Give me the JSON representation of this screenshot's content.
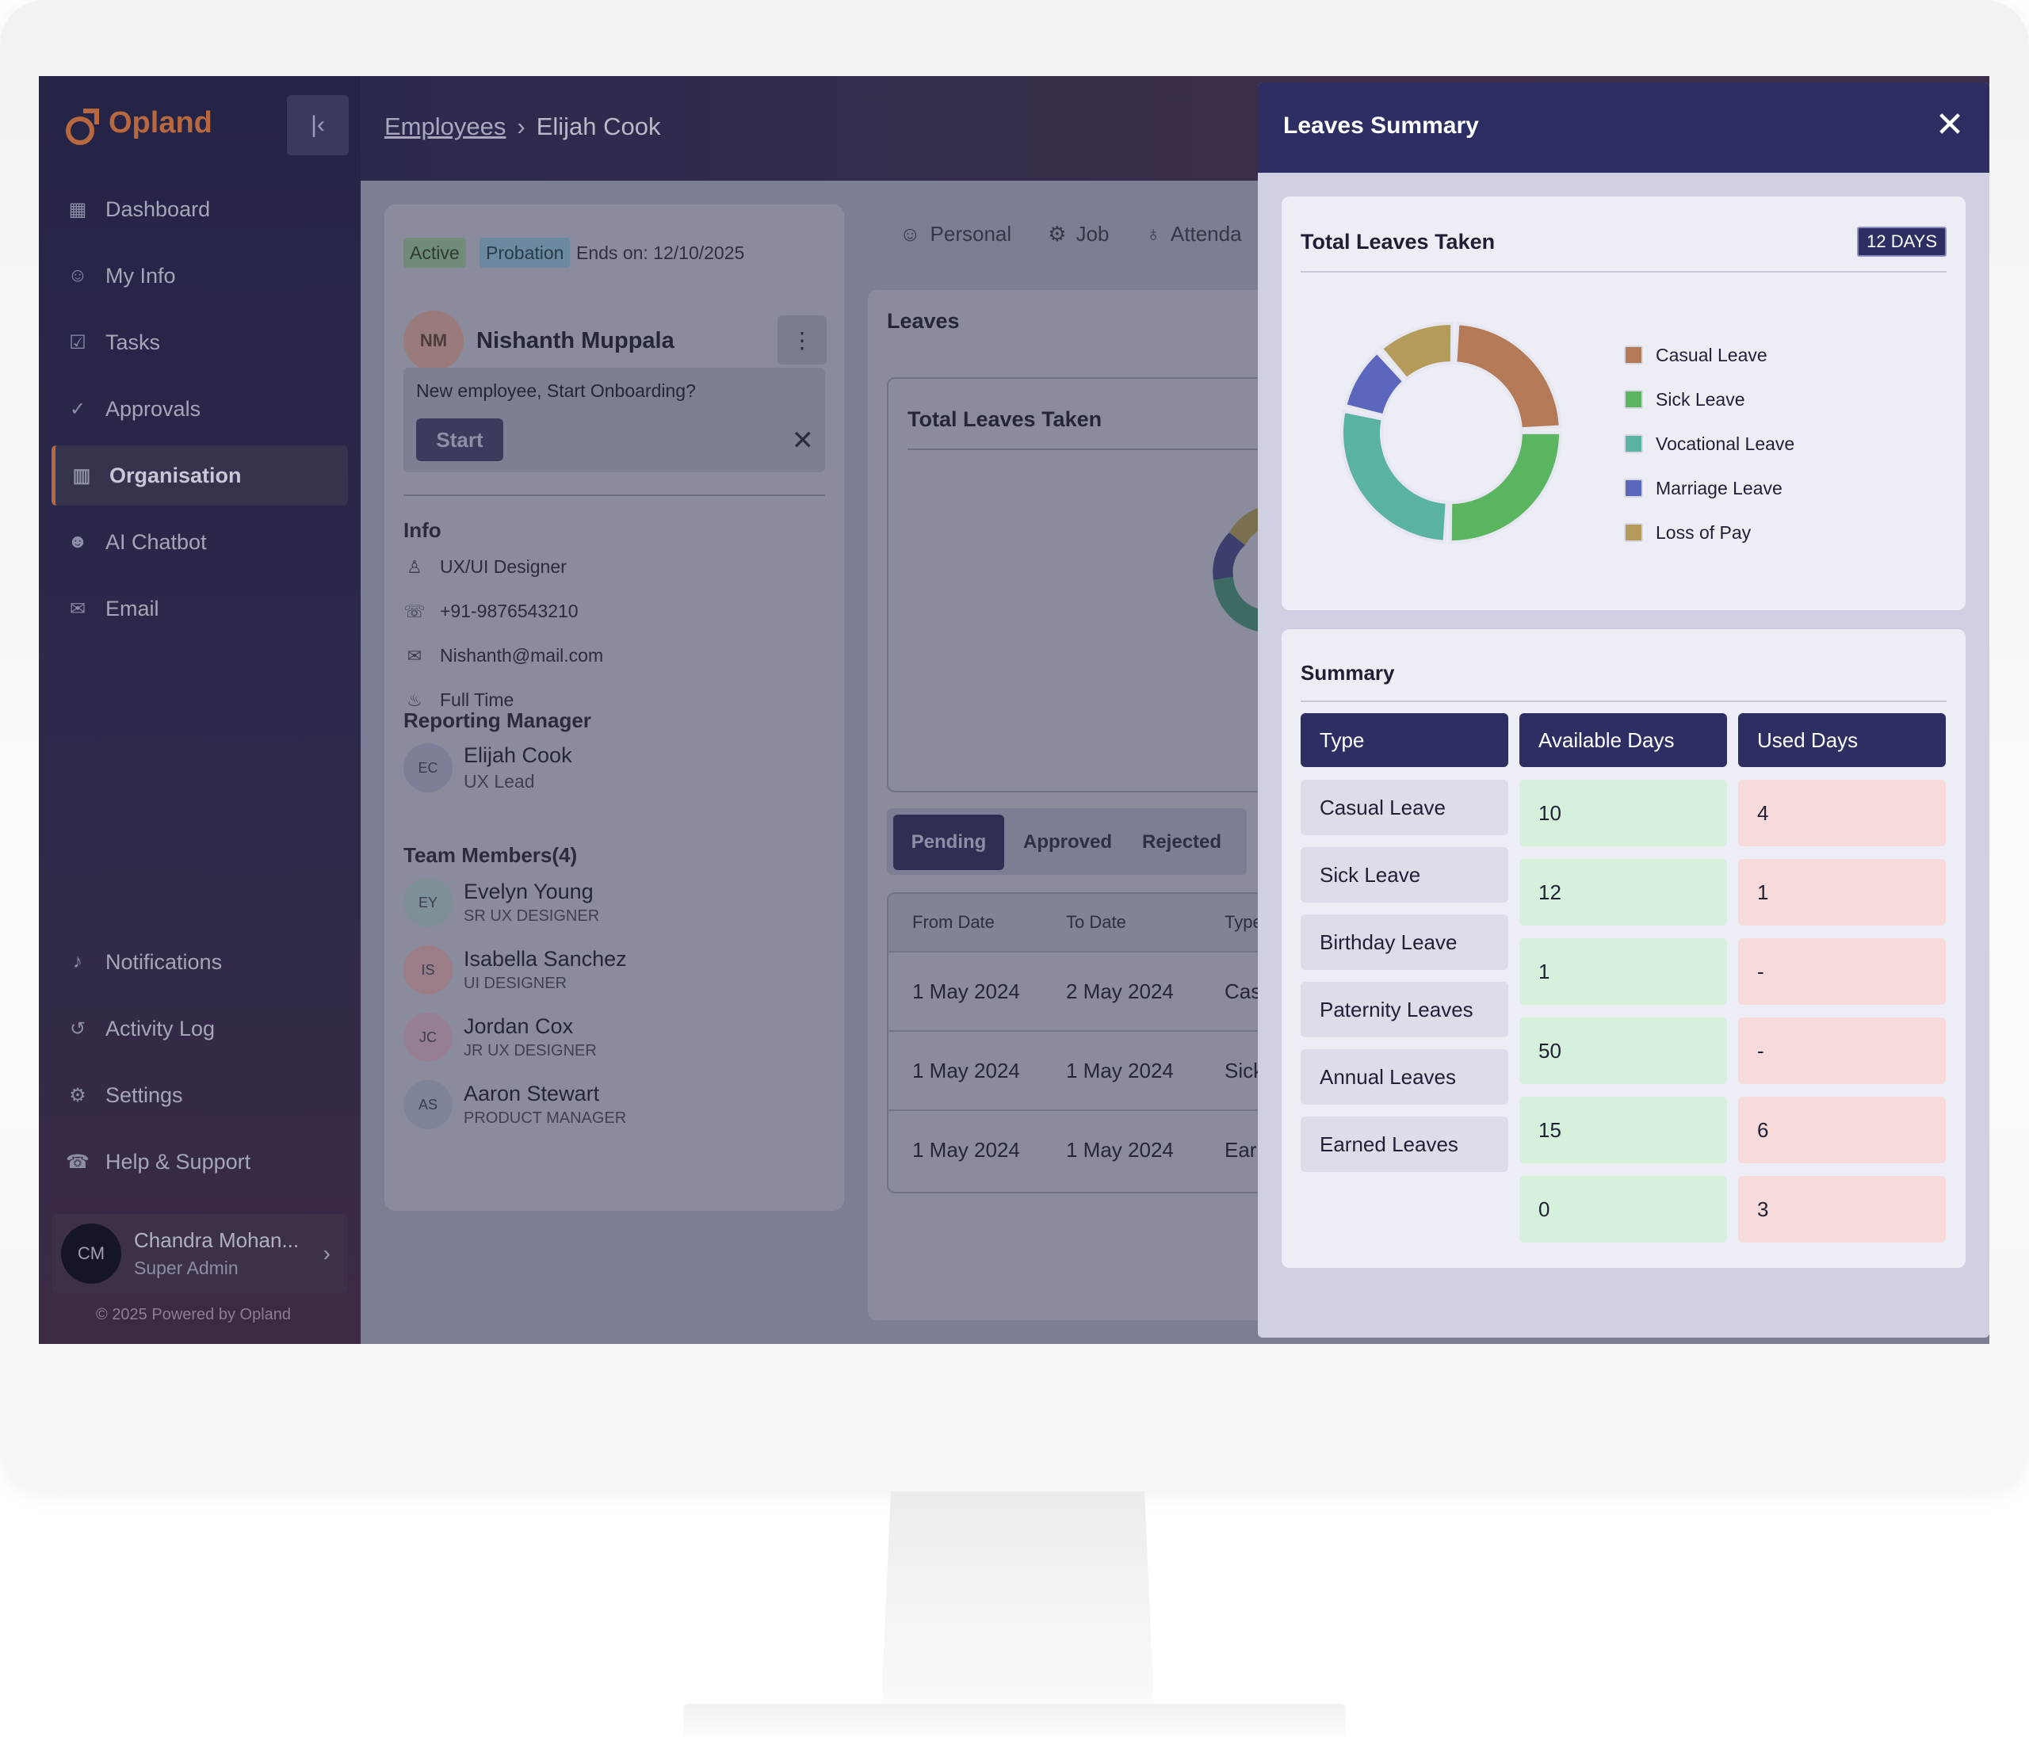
{
  "app": {
    "brand": "Opland",
    "nav": [
      {
        "label": "Dashboard",
        "icon": "dashboard-icon"
      },
      {
        "label": "My Info",
        "icon": "user-icon"
      },
      {
        "label": "Tasks",
        "icon": "tasks-icon"
      },
      {
        "label": "Approvals",
        "icon": "approvals-icon"
      },
      {
        "label": "Organisation",
        "icon": "building-icon",
        "active": true
      },
      {
        "label": "AI Chatbot",
        "icon": "bot-icon"
      },
      {
        "label": "Email",
        "icon": "mail-icon"
      }
    ],
    "bottom_nav": [
      {
        "label": "Notifications",
        "icon": "bell-icon"
      },
      {
        "label": "Activity Log",
        "icon": "history-icon"
      },
      {
        "label": "Settings",
        "icon": "gear-icon"
      },
      {
        "label": "Help & Support",
        "icon": "support-icon"
      }
    ],
    "user": {
      "initials": "CM",
      "name": "Chandra Mohan...",
      "role": "Super Admin"
    },
    "footer": "2025 Powered by Opland"
  },
  "breadcrumb": {
    "parent": "Employees",
    "current": "Elijah Cook"
  },
  "profile": {
    "status": "Active",
    "stage": "Probation",
    "ends": "Ends on: 12/10/2025",
    "initials": "NM",
    "name": "Nishanth Muppala",
    "onboarding_prompt": "New employee, Start Onboarding?",
    "start_label": "Start",
    "info_title": "Info",
    "info": [
      {
        "icon": "role-icon",
        "text": "UX/UI Designer"
      },
      {
        "icon": "phone-icon",
        "text": "+91-9876543210"
      },
      {
        "icon": "mail-icon",
        "text": "Nishanth@mail.com"
      },
      {
        "icon": "employment-type-icon",
        "text": "Full Time"
      }
    ],
    "manager_title": "Reporting Manager",
    "manager": {
      "initials": "EC",
      "name": "Elijah Cook",
      "role": "UX Lead"
    },
    "team_title": "Team Members(4)",
    "team": [
      {
        "initials": "EY",
        "name": "Evelyn Young",
        "role": "SR UX DESIGNER",
        "color": "#7f8f97"
      },
      {
        "initials": "IS",
        "name": "Isabella Sanchez",
        "role": "UI DESIGNER",
        "color": "#9a7d86"
      },
      {
        "initials": "JC",
        "name": "Jordan Cox",
        "role": "JR UX DESIGNER",
        "color": "#977f93"
      },
      {
        "initials": "AS",
        "name": "Aaron Stewart",
        "role": "PRODUCT MANAGER",
        "color": "#7f8498"
      }
    ]
  },
  "tabs": [
    "Personal",
    "Job",
    "Attenda"
  ],
  "leaves": {
    "title": "Leaves",
    "card_title": "Total Leaves Taken",
    "segments": [
      "Pending",
      "Approved",
      "Rejected"
    ],
    "columns": [
      "From Date",
      "To Date",
      "Type"
    ],
    "rows": [
      [
        "1 May 2024",
        "2 May 2024",
        "Casu"
      ],
      [
        "1 May 2024",
        "1 May 2024",
        "Sick"
      ],
      [
        "1 May 2024",
        "1 May 2024",
        "Earn"
      ]
    ]
  },
  "panel": {
    "title": "Leaves Summary",
    "total_title": "Total Leaves Taken",
    "total_days": "12 DAYS",
    "summary_title": "Summary",
    "columns": [
      "Type",
      "Available Days",
      "Used Days"
    ],
    "types": [
      "Casual Leave",
      "Sick Leave",
      "Birthday Leave",
      "Paternity Leaves",
      "Annual Leaves",
      "Earned Leaves"
    ],
    "available": [
      "10",
      "12",
      "1",
      "50",
      "15",
      "0"
    ],
    "used": [
      "4",
      "1",
      "-",
      "-",
      "6",
      "3"
    ]
  },
  "chart_data": {
    "type": "pie",
    "variant": "donut",
    "categories": [
      "Casual Leave",
      "Sick Leave",
      "Vocational Leave",
      "Marriage Leave",
      "Loss of Pay"
    ],
    "values": [
      24,
      26,
      28,
      10,
      12
    ],
    "value_unit": "percent (estimated)",
    "colors": [
      "#b47a57",
      "#5bb45f",
      "#5ab2a1",
      "#5b67bd",
      "#b49b59"
    ],
    "legend_position": "right"
  }
}
